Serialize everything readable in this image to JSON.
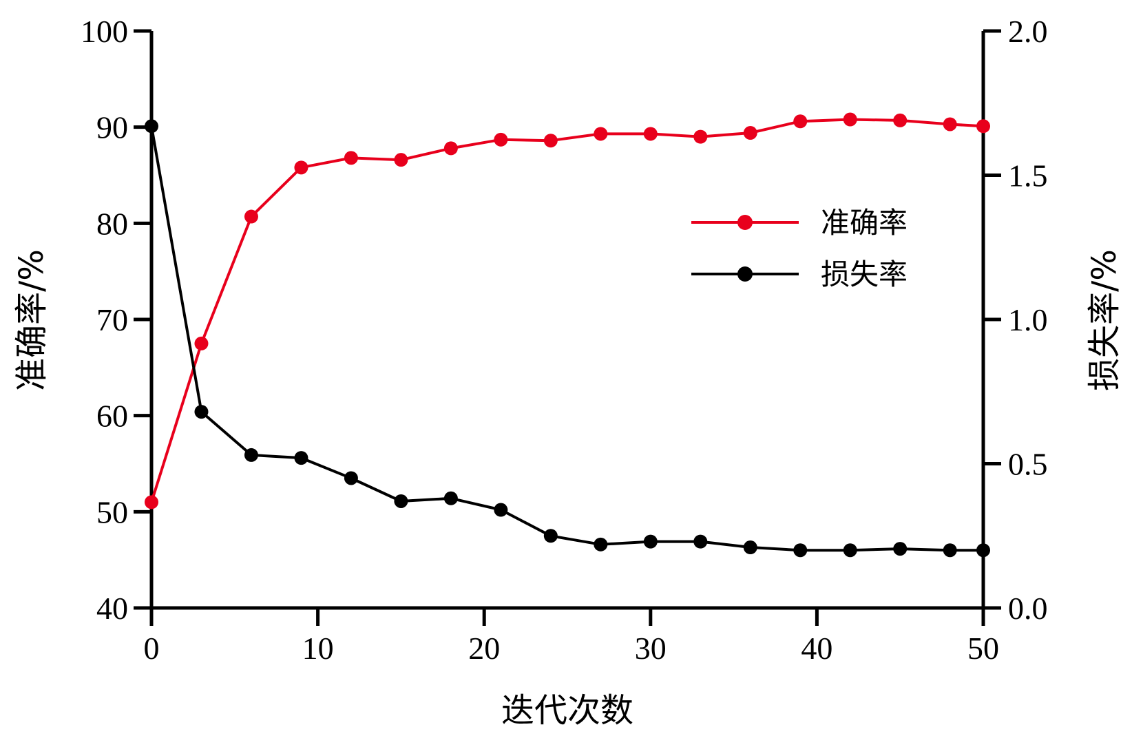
{
  "chart_data": {
    "type": "line",
    "xlabel": "迭代次数",
    "ylabel_left": "准确率/%",
    "ylabel_right": "损失率/%",
    "xlim": [
      0,
      50
    ],
    "ylim_left": [
      40,
      100
    ],
    "ylim_right": [
      0.0,
      2.0
    ],
    "x_ticks": [
      "0",
      "10",
      "20",
      "30",
      "40",
      "50"
    ],
    "y_left_ticks": [
      "40",
      "50",
      "60",
      "70",
      "80",
      "90",
      "100"
    ],
    "y_right_ticks": [
      "0.0",
      "0.5",
      "1.0",
      "1.5",
      "2.0"
    ],
    "grid": false,
    "legend_position": "upper-right",
    "x": [
      0,
      3,
      6,
      9,
      12,
      15,
      18,
      21,
      24,
      27,
      30,
      33,
      36,
      39,
      42,
      45,
      48,
      50
    ],
    "series": [
      {
        "name": "准确率",
        "axis": "left",
        "color": "#e8001c",
        "values": [
          51.0,
          67.5,
          80.7,
          85.8,
          86.8,
          86.6,
          87.8,
          88.7,
          88.6,
          89.3,
          89.3,
          89.0,
          89.4,
          90.6,
          90.8,
          90.7,
          90.3,
          90.1
        ]
      },
      {
        "name": "损失率",
        "axis": "right",
        "color": "#000000",
        "values": [
          1.67,
          0.68,
          0.53,
          0.52,
          0.45,
          0.37,
          0.38,
          0.34,
          0.25,
          0.22,
          0.23,
          0.23,
          0.21,
          0.2,
          0.2,
          0.205,
          0.2,
          0.2
        ]
      }
    ]
  }
}
